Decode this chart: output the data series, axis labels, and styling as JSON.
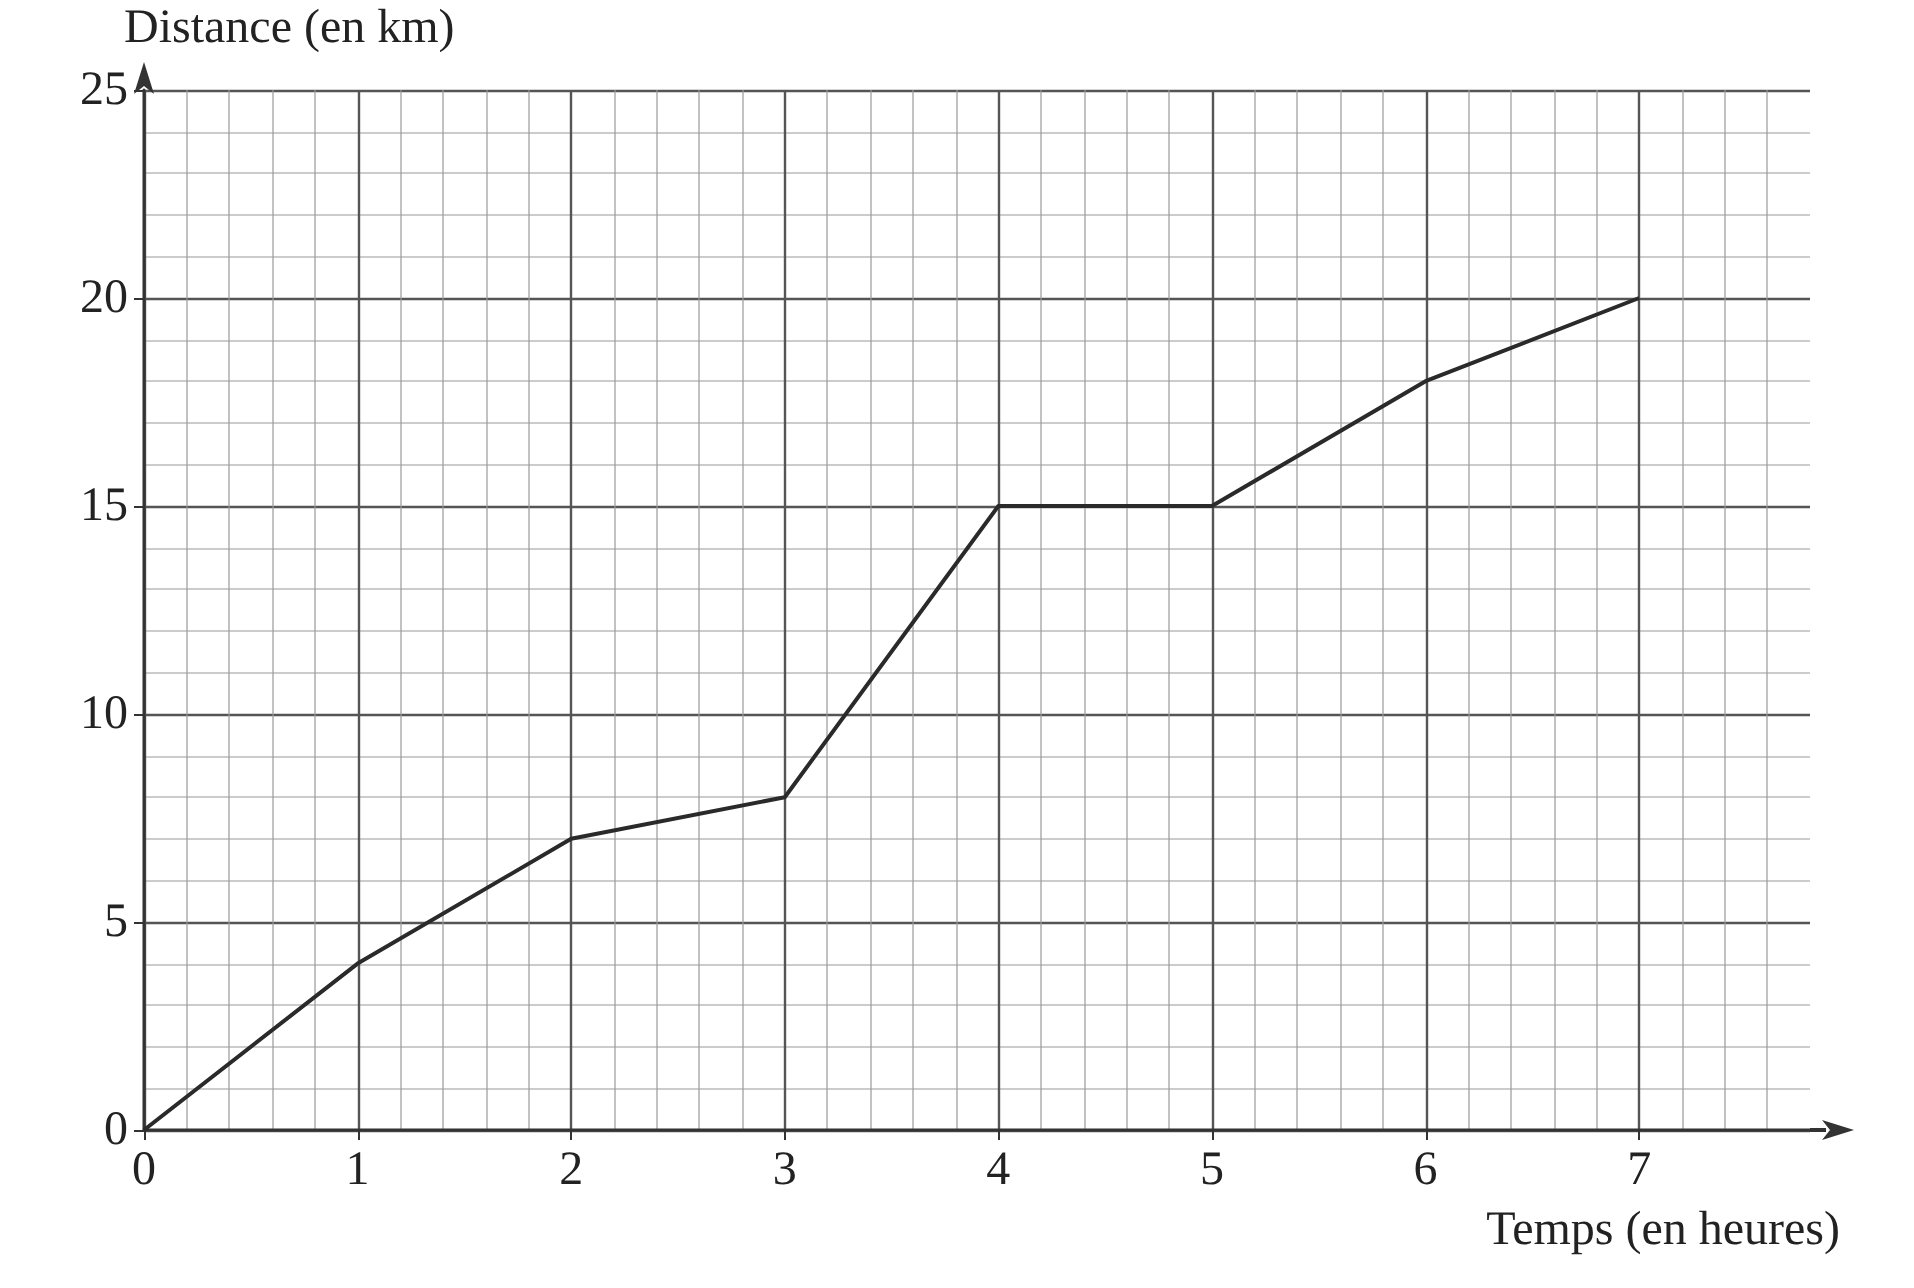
{
  "chart_data": {
    "type": "line",
    "xlabel": "Temps (en heures)",
    "ylabel": "Distance (en km)",
    "x": [
      0,
      1,
      2,
      3,
      4,
      5,
      6,
      7
    ],
    "series": [
      {
        "color": "#2a2a2a",
        "values": [
          0,
          4,
          7,
          8,
          15,
          15,
          18,
          20
        ]
      }
    ],
    "xlim": [
      0,
      7.8
    ],
    "xticks": [
      0,
      1,
      2,
      3,
      4,
      5,
      6,
      7
    ],
    "ylim": [
      0,
      25
    ],
    "yticks": [
      0,
      5,
      10,
      15,
      20,
      25
    ],
    "grid": true,
    "marker": "none",
    "line_style": "solid"
  }
}
